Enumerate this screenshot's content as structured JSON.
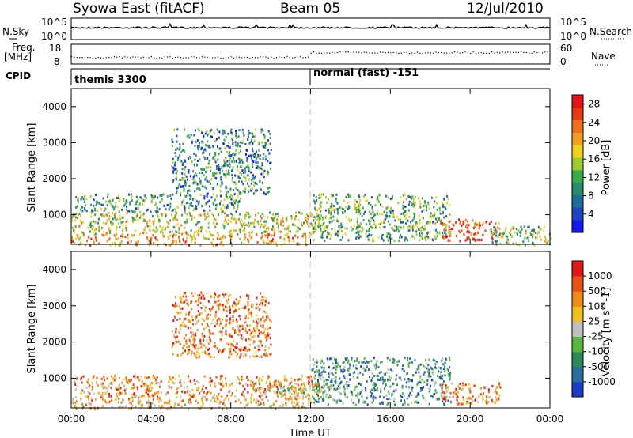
{
  "header": {
    "station": "Syowa East (fitACF)",
    "beam": "Beam 05",
    "date": "12/Jul/2010"
  },
  "aux_panels": {
    "nsky_label": "N.Sky",
    "nsearch_label": "N.Search",
    "freq_label_1": "Freq.",
    "freq_label_2": "[MHz]",
    "nave_label": "Nave",
    "cpid_label": "CPID",
    "noise_ticks_left": [
      "10^5",
      "10^0"
    ],
    "noise_ticks_right": [
      "10^5",
      "10^0"
    ],
    "freq_ticks": [
      "18",
      "8"
    ],
    "nave_ticks": [
      "60",
      "0"
    ],
    "cpid_segments": [
      {
        "label": "themis 3300",
        "start_hour": 0,
        "end_hour": 12
      },
      {
        "label": "normal (fast) -151",
        "start_hour": 12,
        "end_hour": 24
      }
    ]
  },
  "chart_data": [
    {
      "type": "heatmap",
      "quantity": "Power",
      "xlabel": "",
      "ylabel": "Slant Range [km]",
      "x_ticks": [
        "00:00",
        "04:00",
        "08:00",
        "12:00",
        "16:00",
        "20:00",
        "00:00"
      ],
      "xlim": [
        0,
        24
      ],
      "ylim": [
        180,
        4500
      ],
      "y_ticks": [
        1000,
        2000,
        3000,
        4000
      ],
      "colorbar": {
        "label": "Power [dB]",
        "ticks": [
          4,
          8,
          12,
          16,
          20,
          24,
          28
        ],
        "range": [
          0,
          30
        ],
        "colors": [
          "#1818f0",
          "#1e44c0",
          "#1f6e9a",
          "#2a8a6a",
          "#3aaa4a",
          "#9ccc30",
          "#f0d020",
          "#f0a020",
          "#f07020",
          "#e83a14",
          "#e0141a"
        ]
      },
      "regions": [
        {
          "t0": 0.0,
          "t1": 12.0,
          "r0": 180,
          "r1": 500,
          "level": 0.7
        },
        {
          "t0": 0.0,
          "t1": 12.5,
          "r0": 500,
          "r1": 1100,
          "level": 0.55
        },
        {
          "t0": 0.2,
          "t1": 8.5,
          "r0": 1100,
          "r1": 1600,
          "level": 0.35
        },
        {
          "t0": 5.0,
          "t1": 10.0,
          "r0": 1600,
          "r1": 3400,
          "level": 0.3
        },
        {
          "t0": 12.0,
          "t1": 19.0,
          "r0": 300,
          "r1": 1600,
          "level": 0.4
        },
        {
          "t0": 18.5,
          "t1": 21.5,
          "r0": 300,
          "r1": 900,
          "level": 0.85
        },
        {
          "t0": 21.0,
          "t1": 24.0,
          "r0": 180,
          "r1": 700,
          "level": 0.45
        }
      ]
    },
    {
      "type": "heatmap",
      "quantity": "Velocity",
      "xlabel": "Time UT",
      "ylabel": "Slant Range [km]",
      "x_ticks": [
        "00:00",
        "04:00",
        "08:00",
        "12:00",
        "16:00",
        "20:00",
        "00:00"
      ],
      "xlim": [
        0,
        24
      ],
      "ylim": [
        180,
        4500
      ],
      "y_ticks": [
        1000,
        2000,
        3000,
        4000
      ],
      "colorbar": {
        "label": "Velocity [m s^-1]",
        "ticks": [
          "1000",
          "500",
          "100",
          "25",
          "-25",
          "-100",
          "-500",
          "-1000"
        ],
        "colors": [
          "#1a3ec8",
          "#2a6e9e",
          "#2c8a5a",
          "#5ab840",
          "#c0c0c0",
          "#f0c020",
          "#f08a18",
          "#e85014",
          "#e01818"
        ]
      },
      "regions": [
        {
          "t0": 0.0,
          "t1": 12.0,
          "r0": 180,
          "r1": 500,
          "level": 0.65
        },
        {
          "t0": 0.0,
          "t1": 12.5,
          "r0": 500,
          "r1": 1100,
          "level": 0.7
        },
        {
          "t0": 5.0,
          "t1": 10.0,
          "r0": 1600,
          "r1": 3400,
          "level": 0.75
        },
        {
          "t0": 12.0,
          "t1": 19.0,
          "r0": 300,
          "r1": 1600,
          "level": 0.3
        },
        {
          "t0": 18.5,
          "t1": 21.5,
          "r0": 300,
          "r1": 900,
          "level": 0.7
        },
        {
          "t0": 9.0,
          "t1": 13.0,
          "r0": 600,
          "r1": 900,
          "level": 0.5
        }
      ]
    }
  ]
}
